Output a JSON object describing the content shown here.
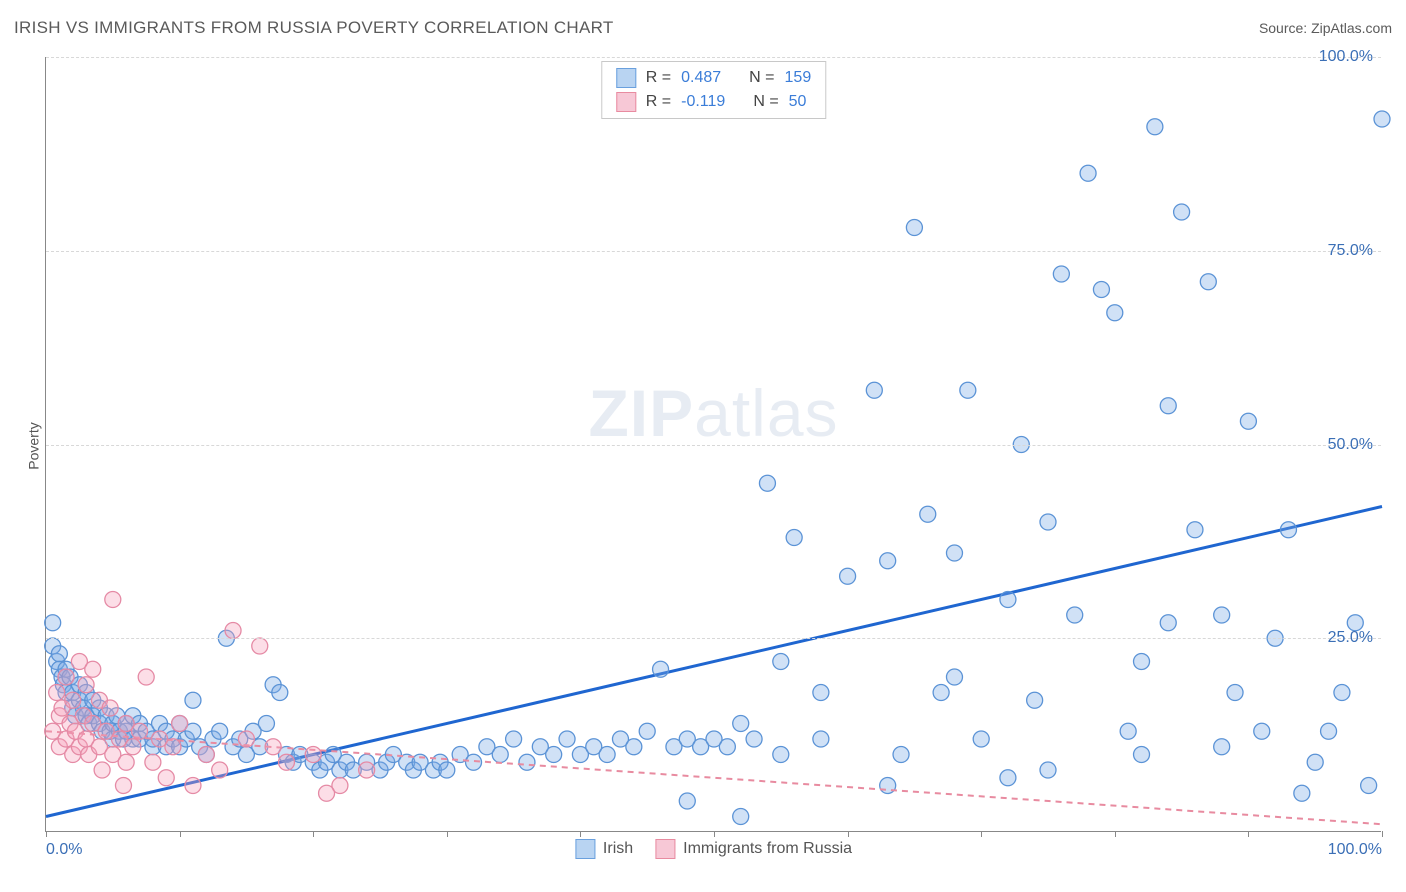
{
  "header": {
    "title": "IRISH VS IMMIGRANTS FROM RUSSIA POVERTY CORRELATION CHART",
    "source_prefix": "Source: ",
    "source_name": "ZipAtlas.com"
  },
  "ylabel": "Poverty",
  "watermark": {
    "zip": "ZIP",
    "atlas": "atlas"
  },
  "chart": {
    "type": "scatter",
    "background_color": "#ffffff",
    "grid_color": "#d8d8d8",
    "axis_color": "#888888",
    "xlim": [
      0,
      100
    ],
    "ylim": [
      0,
      100
    ],
    "xtick_positions": [
      0,
      10,
      20,
      30,
      40,
      50,
      60,
      70,
      80,
      90,
      100
    ],
    "xtick_labels": {
      "0": "0.0%",
      "100": "100.0%"
    },
    "ytick_positions": [
      25,
      50,
      75,
      100
    ],
    "ytick_labels": [
      "25.0%",
      "50.0%",
      "75.0%",
      "100.0%"
    ],
    "tick_label_color": "#3b6fb6",
    "marker_radius": 8,
    "marker_stroke_width": 1.3,
    "series": [
      {
        "id": "irish",
        "label": "Irish",
        "fill": "rgba(120,170,230,0.35)",
        "stroke": "#5b93d6",
        "swatch_fill": "#b9d4f2",
        "swatch_stroke": "#6aa0de",
        "trend": {
          "slope": 0.4,
          "intercept": 2.0,
          "stroke": "#1f66d0",
          "width": 3,
          "dash": ""
        },
        "R": "0.487",
        "N": "159",
        "stat_value_color": "#3b7dd8",
        "points": [
          [
            0.5,
            27
          ],
          [
            0.5,
            24
          ],
          [
            0.8,
            22
          ],
          [
            1,
            23
          ],
          [
            1,
            21
          ],
          [
            1.2,
            20
          ],
          [
            1.3,
            19
          ],
          [
            1.5,
            18
          ],
          [
            1.5,
            21
          ],
          [
            1.8,
            20
          ],
          [
            2,
            18
          ],
          [
            2,
            16
          ],
          [
            2.2,
            15
          ],
          [
            2.5,
            17
          ],
          [
            2.5,
            19
          ],
          [
            2.8,
            16
          ],
          [
            3,
            15
          ],
          [
            3,
            18
          ],
          [
            3.2,
            14
          ],
          [
            3.5,
            15
          ],
          [
            3.5,
            17
          ],
          [
            4,
            14
          ],
          [
            4,
            16
          ],
          [
            4.2,
            13
          ],
          [
            4.5,
            15
          ],
          [
            4.8,
            13
          ],
          [
            5,
            14
          ],
          [
            5,
            12
          ],
          [
            5.3,
            15
          ],
          [
            5.5,
            13
          ],
          [
            5.8,
            12
          ],
          [
            6,
            13
          ],
          [
            6,
            14
          ],
          [
            6.5,
            12
          ],
          [
            6.5,
            15
          ],
          [
            7,
            12
          ],
          [
            7,
            14
          ],
          [
            7.5,
            13
          ],
          [
            8,
            11
          ],
          [
            8,
            12
          ],
          [
            8.5,
            14
          ],
          [
            9,
            11
          ],
          [
            9,
            13
          ],
          [
            9.5,
            12
          ],
          [
            10,
            11
          ],
          [
            10,
            14
          ],
          [
            10.5,
            12
          ],
          [
            11,
            13
          ],
          [
            11,
            17
          ],
          [
            11.5,
            11
          ],
          [
            12,
            10
          ],
          [
            12.5,
            12
          ],
          [
            13,
            13
          ],
          [
            13.5,
            25
          ],
          [
            14,
            11
          ],
          [
            14.5,
            12
          ],
          [
            15,
            10
          ],
          [
            15.5,
            13
          ],
          [
            16,
            11
          ],
          [
            16.5,
            14
          ],
          [
            17,
            19
          ],
          [
            17.5,
            18
          ],
          [
            18,
            10
          ],
          [
            18.5,
            9
          ],
          [
            19,
            10
          ],
          [
            20,
            9
          ],
          [
            20.5,
            8
          ],
          [
            21,
            9
          ],
          [
            21.5,
            10
          ],
          [
            22,
            8
          ],
          [
            22.5,
            9
          ],
          [
            23,
            8
          ],
          [
            24,
            9
          ],
          [
            25,
            8
          ],
          [
            25.5,
            9
          ],
          [
            26,
            10
          ],
          [
            27,
            9
          ],
          [
            27.5,
            8
          ],
          [
            28,
            9
          ],
          [
            29,
            8
          ],
          [
            29.5,
            9
          ],
          [
            30,
            8
          ],
          [
            31,
            10
          ],
          [
            32,
            9
          ],
          [
            33,
            11
          ],
          [
            34,
            10
          ],
          [
            35,
            12
          ],
          [
            36,
            9
          ],
          [
            37,
            11
          ],
          [
            38,
            10
          ],
          [
            39,
            12
          ],
          [
            40,
            10
          ],
          [
            41,
            11
          ],
          [
            42,
            10
          ],
          [
            43,
            12
          ],
          [
            44,
            11
          ],
          [
            45,
            13
          ],
          [
            46,
            21
          ],
          [
            47,
            11
          ],
          [
            48,
            12
          ],
          [
            49,
            11
          ],
          [
            50,
            12
          ],
          [
            51,
            11
          ],
          [
            52,
            2
          ],
          [
            53,
            12
          ],
          [
            54,
            45
          ],
          [
            55,
            22
          ],
          [
            56,
            38
          ],
          [
            58,
            12
          ],
          [
            60,
            33
          ],
          [
            62,
            57
          ],
          [
            63,
            35
          ],
          [
            64,
            10
          ],
          [
            65,
            78
          ],
          [
            66,
            41
          ],
          [
            67,
            18
          ],
          [
            68,
            36
          ],
          [
            69,
            57
          ],
          [
            70,
            12
          ],
          [
            72,
            30
          ],
          [
            73,
            50
          ],
          [
            74,
            17
          ],
          [
            75,
            8
          ],
          [
            76,
            72
          ],
          [
            77,
            28
          ],
          [
            78,
            85
          ],
          [
            79,
            70
          ],
          [
            80,
            67
          ],
          [
            81,
            13
          ],
          [
            82,
            10
          ],
          [
            83,
            91
          ],
          [
            84,
            55
          ],
          [
            85,
            80
          ],
          [
            86,
            39
          ],
          [
            87,
            71
          ],
          [
            88,
            28
          ],
          [
            89,
            18
          ],
          [
            90,
            53
          ],
          [
            91,
            13
          ],
          [
            92,
            25
          ],
          [
            93,
            39
          ],
          [
            94,
            5
          ],
          [
            95,
            9
          ],
          [
            96,
            13
          ],
          [
            97,
            18
          ],
          [
            98,
            27
          ],
          [
            99,
            6
          ],
          [
            100,
            92
          ],
          [
            63,
            6
          ],
          [
            72,
            7
          ],
          [
            68,
            20
          ],
          [
            75,
            40
          ],
          [
            82,
            22
          ],
          [
            55,
            10
          ],
          [
            58,
            18
          ],
          [
            48,
            4
          ],
          [
            52,
            14
          ],
          [
            84,
            27
          ],
          [
            88,
            11
          ]
        ]
      },
      {
        "id": "russia",
        "label": "Immigrants from Russia",
        "fill": "rgba(245,160,185,0.35)",
        "stroke": "#e58aa5",
        "swatch_fill": "#f7c8d6",
        "swatch_stroke": "#e88ba0",
        "trend": {
          "slope": -0.12,
          "intercept": 13.0,
          "stroke": "#e88ba0",
          "width": 2,
          "dash": "6,5"
        },
        "R": "-0.119",
        "N": "50",
        "stat_value_color": "#3b7dd8",
        "points": [
          [
            0.5,
            13
          ],
          [
            0.8,
            18
          ],
          [
            1,
            15
          ],
          [
            1,
            11
          ],
          [
            1.2,
            16
          ],
          [
            1.5,
            12
          ],
          [
            1.5,
            20
          ],
          [
            1.8,
            14
          ],
          [
            2,
            10
          ],
          [
            2,
            17
          ],
          [
            2.2,
            13
          ],
          [
            2.5,
            22
          ],
          [
            2.5,
            11
          ],
          [
            2.8,
            15
          ],
          [
            3,
            12
          ],
          [
            3,
            19
          ],
          [
            3.2,
            10
          ],
          [
            3.5,
            14
          ],
          [
            3.5,
            21
          ],
          [
            4,
            11
          ],
          [
            4,
            17
          ],
          [
            4.2,
            8
          ],
          [
            4.5,
            13
          ],
          [
            4.8,
            16
          ],
          [
            5,
            10
          ],
          [
            5,
            30
          ],
          [
            5.5,
            12
          ],
          [
            5.8,
            6
          ],
          [
            6,
            14
          ],
          [
            6,
            9
          ],
          [
            6.5,
            11
          ],
          [
            7,
            13
          ],
          [
            7.5,
            20
          ],
          [
            8,
            9
          ],
          [
            8.5,
            12
          ],
          [
            9,
            7
          ],
          [
            9.5,
            11
          ],
          [
            10,
            14
          ],
          [
            11,
            6
          ],
          [
            12,
            10
          ],
          [
            13,
            8
          ],
          [
            14,
            26
          ],
          [
            15,
            12
          ],
          [
            16,
            24
          ],
          [
            17,
            11
          ],
          [
            18,
            9
          ],
          [
            20,
            10
          ],
          [
            22,
            6
          ],
          [
            24,
            8
          ],
          [
            21,
            5
          ]
        ]
      }
    ]
  },
  "stats_box": {
    "R_label": "R =",
    "N_label": "N ="
  }
}
